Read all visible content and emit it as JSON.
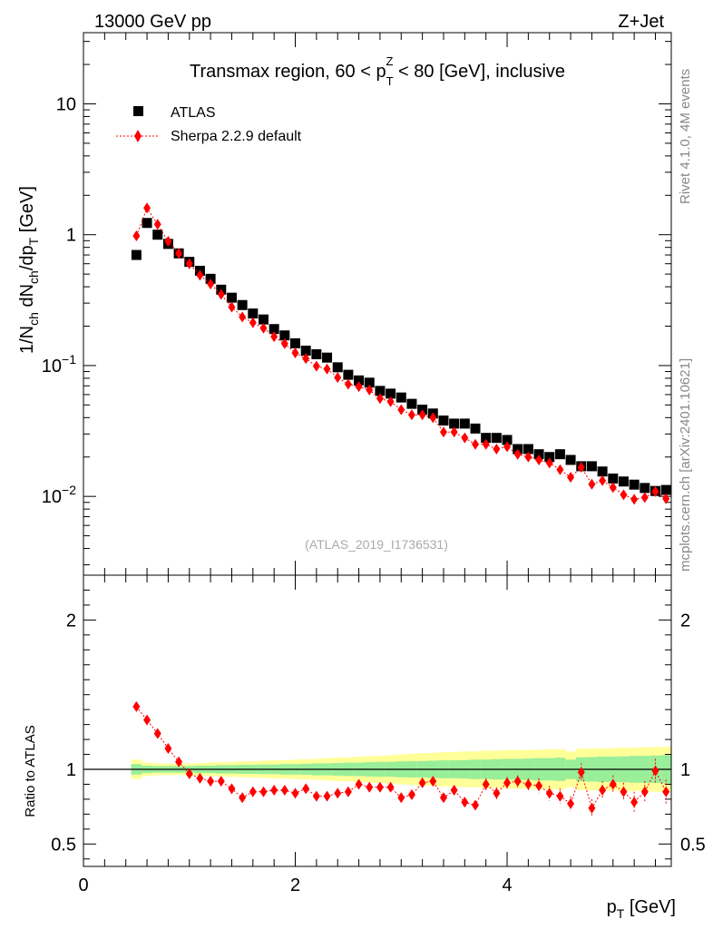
{
  "header": {
    "energy": "13000 GeV pp",
    "process": "Z+Jet"
  },
  "side_text": {
    "rivet": "Rivet 4.1.0,  4M events",
    "mcplots": "mcplots.cern.ch [arXiv:2401.10621]"
  },
  "chart_data": [
    {
      "type": "scatter",
      "panel": "main",
      "title": "Transmax region, 60 < p_T^Z < 80 [GeV], inclusive",
      "title_parts": {
        "a": "Transmax region, 60 < p",
        "sub": "T",
        "sup": "Z",
        "b": " < 80 [GeV], inclusive"
      },
      "ylabel": "1/N_ch dN_ch/dp_T [GeV]",
      "ylabel_parts": {
        "p1": "1/N",
        "s1": "ch",
        "p2": " dN",
        "s2": "ch",
        "p3": "/dp",
        "s3": "T",
        "p4": " [GeV]"
      },
      "yscale": "log",
      "ylim": [
        0.0025,
        35
      ],
      "xlim": [
        0,
        5.55
      ],
      "ytick_labels": [
        {
          "value": 0.01,
          "base": "10",
          "exp": "−2"
        },
        {
          "value": 0.1,
          "base": "10",
          "exp": "−1"
        },
        {
          "value": 1,
          "text": "1"
        },
        {
          "value": 10,
          "text": "10"
        }
      ],
      "watermark": "(ATLAS_2019_I1736531)",
      "legend": {
        "position": "top-left",
        "entries": [
          "ATLAS",
          "Sherpa 2.2.9 default"
        ]
      },
      "x": [
        0.5,
        0.6,
        0.7,
        0.8,
        0.9,
        1.0,
        1.1,
        1.2,
        1.3,
        1.4,
        1.5,
        1.6,
        1.7,
        1.8,
        1.9,
        2.0,
        2.1,
        2.2,
        2.3,
        2.4,
        2.5,
        2.6,
        2.7,
        2.8,
        2.9,
        3.0,
        3.1,
        3.2,
        3.3,
        3.4,
        3.5,
        3.6,
        3.7,
        3.8,
        3.9,
        4.0,
        4.1,
        4.2,
        4.3,
        4.4,
        4.5,
        4.6,
        4.7,
        4.8,
        4.9,
        5.0,
        5.1,
        5.2,
        5.3,
        5.4,
        5.5
      ],
      "series": [
        {
          "name": "ATLAS",
          "color": "#000000",
          "marker": "square",
          "values": [
            0.7,
            1.23,
            1.0,
            0.85,
            0.72,
            0.62,
            0.53,
            0.46,
            0.38,
            0.33,
            0.29,
            0.25,
            0.225,
            0.19,
            0.17,
            0.148,
            0.13,
            0.122,
            0.115,
            0.097,
            0.085,
            0.077,
            0.074,
            0.064,
            0.061,
            0.057,
            0.051,
            0.046,
            0.043,
            0.038,
            0.036,
            0.036,
            0.033,
            0.028,
            0.028,
            0.027,
            0.023,
            0.023,
            0.021,
            0.02,
            0.021,
            0.019,
            0.017,
            0.017,
            0.0155,
            0.0137,
            0.013,
            0.0123,
            0.0116,
            0.011,
            0.0112
          ]
        },
        {
          "name": "Sherpa 2.2.9 default",
          "color": "#ff0000",
          "marker": "diamond",
          "values": [
            0.98,
            1.6,
            1.2,
            0.89,
            0.72,
            0.6,
            0.49,
            0.42,
            0.35,
            0.28,
            0.235,
            0.213,
            0.193,
            0.166,
            0.147,
            0.125,
            0.113,
            0.099,
            0.094,
            0.081,
            0.072,
            0.069,
            0.065,
            0.056,
            0.053,
            0.046,
            0.042,
            0.042,
            0.04,
            0.031,
            0.031,
            0.028,
            0.025,
            0.025,
            0.023,
            0.024,
            0.021,
            0.02,
            0.019,
            0.018,
            0.016,
            0.014,
            0.0167,
            0.0124,
            0.0132,
            0.0117,
            0.0103,
            0.0095,
            0.0098,
            0.0109,
            0.0096
          ]
        }
      ]
    },
    {
      "type": "scatter",
      "panel": "ratio",
      "ylabel": "Ratio to ATLAS",
      "xlabel": "p_T [GeV]",
      "xlabel_parts": {
        "p": "p",
        "sub": "T",
        "rest": " [GeV]"
      },
      "ylim": [
        0.35,
        2.3
      ],
      "xlim": [
        0,
        5.55
      ],
      "yticks": [
        0.5,
        1,
        2
      ],
      "ytick_labels": [
        "0.5",
        "1",
        "2"
      ],
      "xticks": [
        0,
        2,
        4
      ],
      "xtick_labels": [
        "0",
        "2",
        "4"
      ],
      "reference_line": 1,
      "x": [
        0.5,
        0.6,
        0.7,
        0.8,
        0.9,
        1.0,
        1.1,
        1.2,
        1.3,
        1.4,
        1.5,
        1.6,
        1.7,
        1.8,
        1.9,
        2.0,
        2.1,
        2.2,
        2.3,
        2.4,
        2.5,
        2.6,
        2.7,
        2.8,
        2.9,
        3.0,
        3.1,
        3.2,
        3.3,
        3.4,
        3.5,
        3.6,
        3.7,
        3.8,
        3.9,
        4.0,
        4.1,
        4.2,
        4.3,
        4.4,
        4.5,
        4.6,
        4.7,
        4.8,
        4.9,
        5.0,
        5.1,
        5.2,
        5.3,
        5.4,
        5.5
      ],
      "series": [
        {
          "name": "Sherpa 2.2.9 default / ATLAS",
          "color": "#ff0000",
          "marker": "diamond",
          "values": [
            1.42,
            1.33,
            1.24,
            1.14,
            1.05,
            0.97,
            0.94,
            0.92,
            0.92,
            0.87,
            0.81,
            0.85,
            0.85,
            0.86,
            0.86,
            0.84,
            0.87,
            0.82,
            0.82,
            0.84,
            0.85,
            0.9,
            0.88,
            0.88,
            0.88,
            0.81,
            0.83,
            0.91,
            0.92,
            0.81,
            0.86,
            0.78,
            0.76,
            0.9,
            0.84,
            0.91,
            0.92,
            0.9,
            0.89,
            0.84,
            0.82,
            0.77,
            0.98,
            0.74,
            0.86,
            0.9,
            0.85,
            0.78,
            0.85,
            0.99,
            0.85
          ],
          "errors": [
            0.01,
            0.01,
            0.01,
            0.01,
            0.01,
            0.01,
            0.01,
            0.01,
            0.01,
            0.01,
            0.01,
            0.01,
            0.01,
            0.01,
            0.01,
            0.01,
            0.01,
            0.01,
            0.01,
            0.01,
            0.02,
            0.02,
            0.02,
            0.02,
            0.02,
            0.02,
            0.03,
            0.03,
            0.03,
            0.03,
            0.03,
            0.03,
            0.03,
            0.04,
            0.04,
            0.04,
            0.04,
            0.04,
            0.05,
            0.05,
            0.05,
            0.05,
            0.06,
            0.06,
            0.06,
            0.06,
            0.06,
            0.07,
            0.07,
            0.08,
            0.08
          ]
        }
      ],
      "bands": {
        "x_edges": [
          0.45,
          0.55,
          0.65,
          0.75,
          0.85,
          0.95,
          1.05,
          1.15,
          1.25,
          1.35,
          1.45,
          1.55,
          1.65,
          1.75,
          1.85,
          1.95,
          2.05,
          2.15,
          2.25,
          2.35,
          2.45,
          2.55,
          2.65,
          2.75,
          2.85,
          2.95,
          3.05,
          3.15,
          3.25,
          3.35,
          3.45,
          3.55,
          3.65,
          3.75,
          3.85,
          3.95,
          4.05,
          4.15,
          4.25,
          4.35,
          4.45,
          4.55,
          4.65,
          4.75,
          4.85,
          4.95,
          5.05,
          5.15,
          5.25,
          5.35,
          5.45,
          5.55
        ],
        "green_halfwidth": [
          0.035,
          0.025,
          0.022,
          0.022,
          0.022,
          0.022,
          0.025,
          0.025,
          0.028,
          0.028,
          0.03,
          0.03,
          0.032,
          0.032,
          0.035,
          0.035,
          0.037,
          0.04,
          0.04,
          0.042,
          0.045,
          0.045,
          0.048,
          0.05,
          0.05,
          0.053,
          0.055,
          0.055,
          0.058,
          0.06,
          0.06,
          0.062,
          0.065,
          0.065,
          0.068,
          0.07,
          0.07,
          0.072,
          0.075,
          0.075,
          0.078,
          0.065,
          0.08,
          0.082,
          0.085,
          0.085,
          0.087,
          0.09,
          0.09,
          0.092,
          0.095
        ],
        "yellow_halfwidth": [
          0.065,
          0.045,
          0.04,
          0.038,
          0.038,
          0.04,
          0.042,
          0.045,
          0.048,
          0.05,
          0.053,
          0.055,
          0.058,
          0.06,
          0.062,
          0.065,
          0.068,
          0.07,
          0.075,
          0.078,
          0.08,
          0.085,
          0.088,
          0.09,
          0.095,
          0.1,
          0.105,
          0.108,
          0.11,
          0.115,
          0.115,
          0.12,
          0.12,
          0.125,
          0.125,
          0.128,
          0.13,
          0.13,
          0.132,
          0.135,
          0.135,
          0.12,
          0.138,
          0.14,
          0.14,
          0.142,
          0.145,
          0.145,
          0.148,
          0.15,
          0.15
        ]
      }
    }
  ]
}
